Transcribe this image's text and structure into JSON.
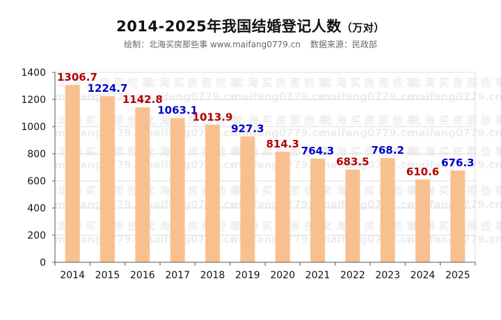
{
  "title": {
    "main": "2014-2025年我国结婚登记人数",
    "unit": "（万对）"
  },
  "subtitle": {
    "credit": "绘制：北海买房那些事 www.maifang0779.cn",
    "source": "数据来源：民政部"
  },
  "watermark": {
    "text_cn": "北 海 买 房 那 些 事",
    "text_url": "maifang0779.cn"
  },
  "colors": {
    "bar": "#F9C08F",
    "label_red": "#B00000",
    "label_blue": "#0000CC",
    "grid": "#dddddd",
    "axis": "#555555"
  },
  "chart_data": {
    "type": "bar",
    "title": "2014-2025年我国结婚登记人数（万对）",
    "categories": [
      "2014",
      "2015",
      "2016",
      "2017",
      "2018",
      "2019",
      "2020",
      "2021",
      "2022",
      "2023",
      "2024",
      "2025"
    ],
    "values": [
      1306.7,
      1224.7,
      1142.8,
      1063.1,
      1013.9,
      927.3,
      814.3,
      764.3,
      683.5,
      768.2,
      610.6,
      676.3
    ],
    "label_colors": [
      "red",
      "blue",
      "red",
      "blue",
      "red",
      "blue",
      "red",
      "blue",
      "red",
      "blue",
      "red",
      "blue"
    ],
    "ylim": [
      0,
      1400
    ],
    "yticks": [
      0,
      200,
      400,
      600,
      800,
      1000,
      1200,
      1400
    ],
    "grid": true,
    "legend": "none"
  }
}
